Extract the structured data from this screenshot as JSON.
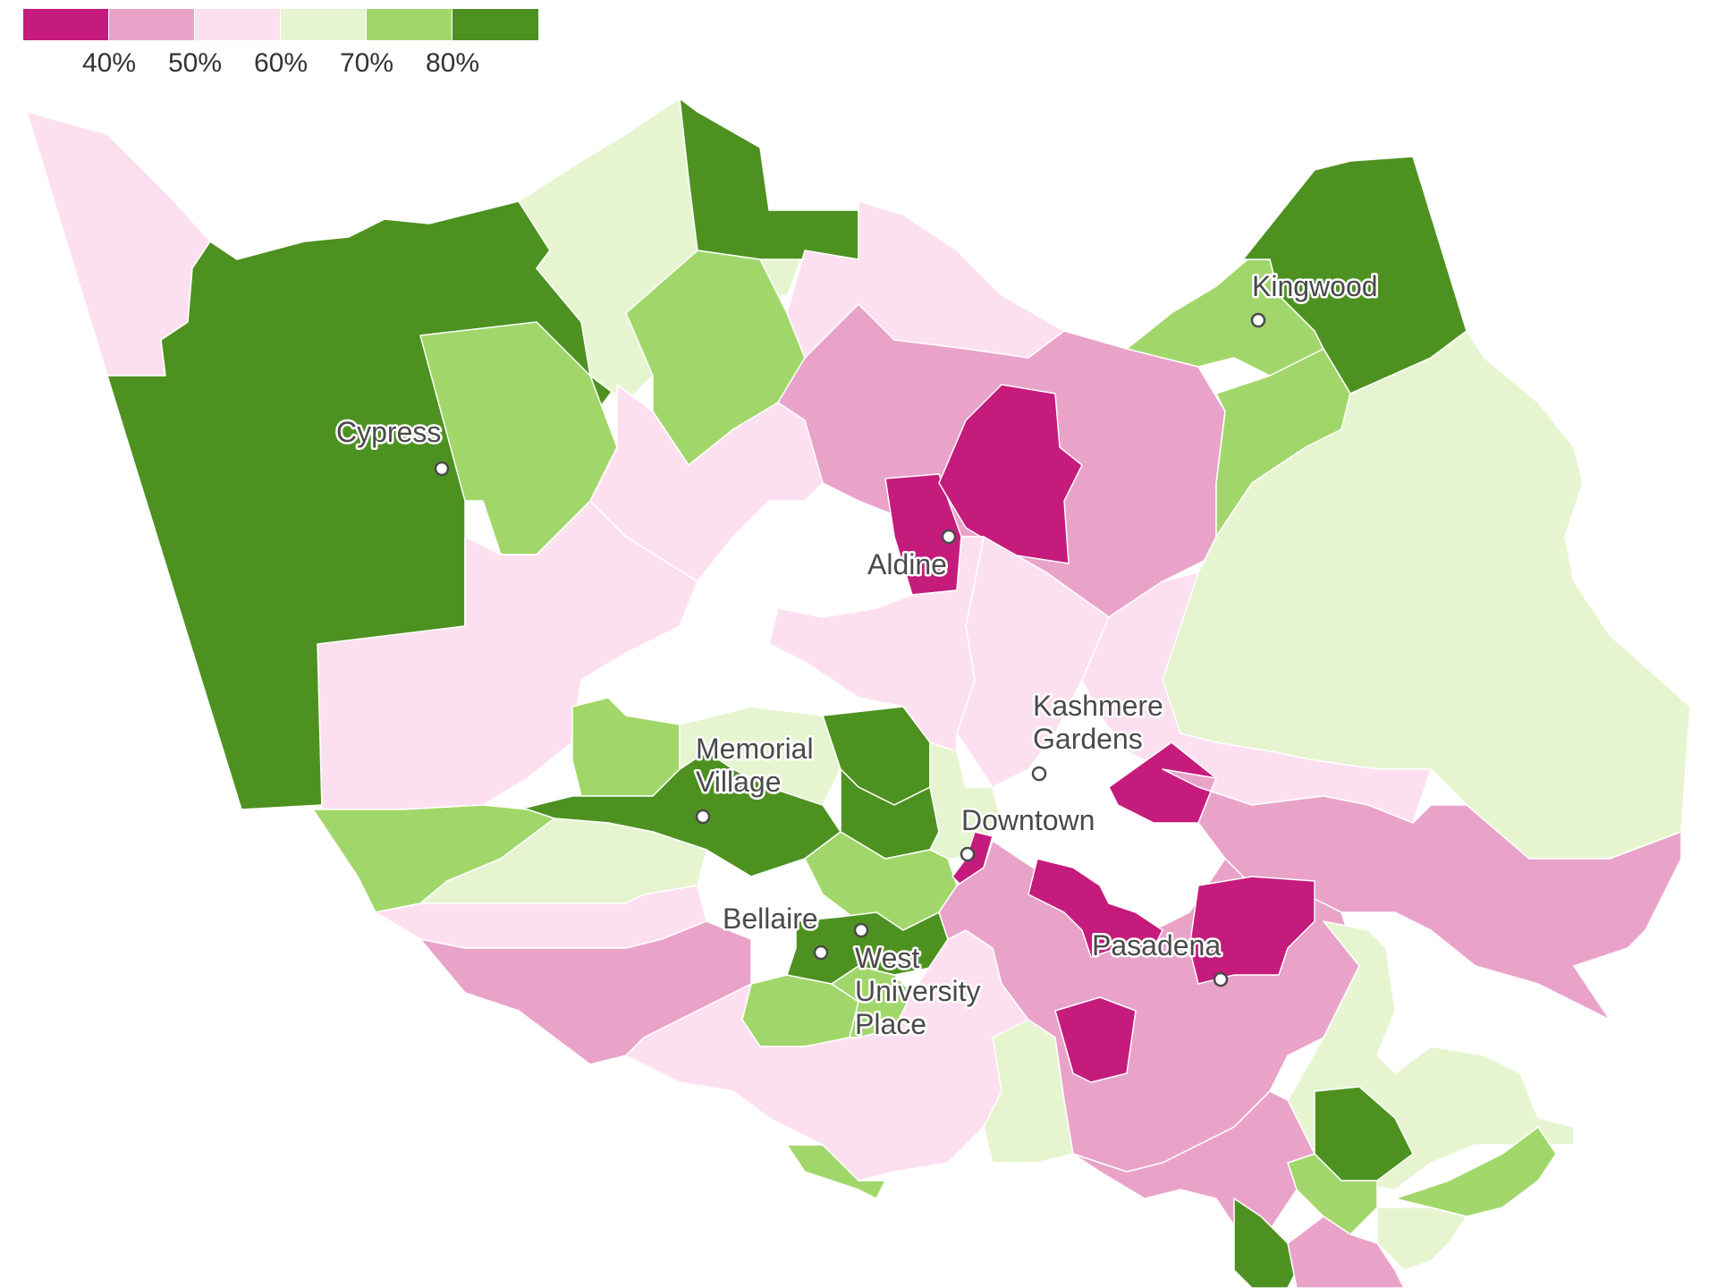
{
  "legend": {
    "colors": [
      "#c51b7d",
      "#e9a3c9",
      "#fde0ef",
      "#e6f5d0",
      "#a1d76a",
      "#4d9221"
    ],
    "labels": [
      "40%",
      "50%",
      "60%",
      "70%",
      "80%"
    ]
  },
  "places": [
    {
      "id": "cypress",
      "lines": [
        "Cypress"
      ]
    },
    {
      "id": "kingwood",
      "lines": [
        "Kingwood"
      ]
    },
    {
      "id": "aldine",
      "lines": [
        "Aldine"
      ]
    },
    {
      "id": "kashmere-gardens",
      "lines": [
        "Kashmere",
        "Gardens"
      ]
    },
    {
      "id": "memorial-village",
      "lines": [
        "Memorial",
        "Village"
      ]
    },
    {
      "id": "downtown",
      "lines": [
        "Downtown"
      ]
    },
    {
      "id": "bellaire",
      "lines": [
        "Bellaire"
      ]
    },
    {
      "id": "west-university-place",
      "lines": [
        "West",
        "University",
        "Place"
      ]
    },
    {
      "id": "pasadena",
      "lines": [
        "Pasadena"
      ]
    }
  ]
}
